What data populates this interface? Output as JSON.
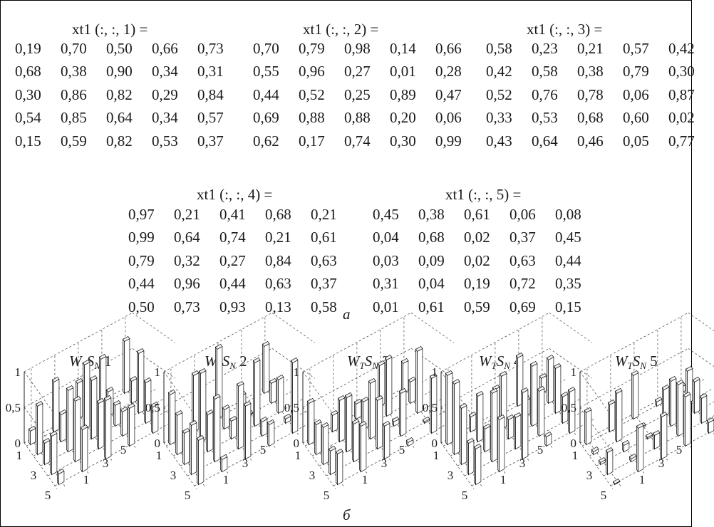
{
  "matrices": [
    {
      "title": "xt1 (:, :, 1) =",
      "rows": [
        [
          "0,19",
          "0,70",
          "0,50",
          "0,66",
          "0,73"
        ],
        [
          "0,68",
          "0,38",
          "0,90",
          "0,34",
          "0,31"
        ],
        [
          "0,30",
          "0,86",
          "0,82",
          "0,29",
          "0,84"
        ],
        [
          "0,54",
          "0,85",
          "0,64",
          "0,34",
          "0,57"
        ],
        [
          "0,15",
          "0,59",
          "0,82",
          "0,53",
          "0,37"
        ]
      ]
    },
    {
      "title": "xt1 (:, :, 2) =",
      "rows": [
        [
          "0,70",
          "0,79",
          "0,98",
          "0,14",
          "0,66"
        ],
        [
          "0,55",
          "0,96",
          "0,27",
          "0,01",
          "0,28"
        ],
        [
          "0,44",
          "0,52",
          "0,25",
          "0,89",
          "0,47"
        ],
        [
          "0,69",
          "0,88",
          "0,88",
          "0,20",
          "0,06"
        ],
        [
          "0,62",
          "0,17",
          "0,74",
          "0,30",
          "0,99"
        ]
      ]
    },
    {
      "title": "xt1 (:, :, 3) =",
      "rows": [
        [
          "0,58",
          "0,23",
          "0,21",
          "0,57",
          "0,42"
        ],
        [
          "0,42",
          "0,58",
          "0,38",
          "0,79",
          "0,30"
        ],
        [
          "0,52",
          "0,76",
          "0,78",
          "0,06",
          "0,87"
        ],
        [
          "0,33",
          "0,53",
          "0,68",
          "0,60",
          "0,02"
        ],
        [
          "0,43",
          "0,64",
          "0,46",
          "0,05",
          "0,77"
        ]
      ]
    },
    {
      "title": "xt1 (:, :, 4) =",
      "rows": [
        [
          "0,97",
          "0,21",
          "0,41",
          "0,68",
          "0,21"
        ],
        [
          "0,99",
          "0,64",
          "0,74",
          "0,21",
          "0,61"
        ],
        [
          "0,79",
          "0,32",
          "0,27",
          "0,84",
          "0,63"
        ],
        [
          "0,44",
          "0,96",
          "0,44",
          "0,63",
          "0,37"
        ],
        [
          "0,50",
          "0,73",
          "0,93",
          "0,13",
          "0,58"
        ]
      ]
    },
    {
      "title": "xt1 (:, :, 5) =",
      "rows": [
        [
          "0,45",
          "0,38",
          "0,61",
          "0,06",
          "0,08"
        ],
        [
          "0,04",
          "0,68",
          "0,02",
          "0,37",
          "0,45"
        ],
        [
          "0,03",
          "0,09",
          "0,02",
          "0,63",
          "0,44"
        ],
        [
          "0,31",
          "0,04",
          "0,19",
          "0,72",
          "0,35"
        ],
        [
          "0,01",
          "0,61",
          "0,59",
          "0,69",
          "0,15"
        ]
      ]
    }
  ],
  "labels": {
    "a": "a",
    "b": "б"
  },
  "chart_data": [
    {
      "type": "bar3d",
      "title_main": "W",
      "title_sub1": "T",
      "title_mid": "S",
      "title_sub2": "N",
      "title_num": " 1",
      "zticks": [
        "0",
        "0,5",
        "1"
      ],
      "xticks": [
        "1",
        "3",
        "5"
      ],
      "yticks": [
        "1",
        "3",
        "5"
      ],
      "zlim": [
        0,
        1
      ],
      "grid": true
    },
    {
      "type": "bar3d",
      "title_main": "W",
      "title_sub1": "T",
      "title_mid": "S",
      "title_sub2": "N",
      "title_num": " 2",
      "zticks": [
        "0",
        "0,5",
        "1"
      ],
      "xticks": [
        "1",
        "3",
        "5"
      ],
      "yticks": [
        "1",
        "3",
        "5"
      ],
      "zlim": [
        0,
        1
      ],
      "grid": true
    },
    {
      "type": "bar3d",
      "title_main": "W",
      "title_sub1": "T",
      "title_mid": "S",
      "title_sub2": "N",
      "title_num": " 3",
      "zticks": [
        "0",
        "0,5",
        "1"
      ],
      "xticks": [
        "1",
        "3",
        "5"
      ],
      "yticks": [
        "1",
        "3",
        "5"
      ],
      "zlim": [
        0,
        1
      ],
      "grid": true
    },
    {
      "type": "bar3d",
      "title_main": "W",
      "title_sub1": "T",
      "title_mid": "S",
      "title_sub2": "N",
      "title_num": " 4",
      "zticks": [
        "0",
        "0,5",
        "1"
      ],
      "xticks": [
        "1",
        "3",
        "5"
      ],
      "yticks": [
        "1",
        "3",
        "5"
      ],
      "zlim": [
        0,
        1
      ],
      "grid": true
    },
    {
      "type": "bar3d",
      "title_main": "W",
      "title_sub1": "T",
      "title_mid": "S",
      "title_sub2": "N",
      "title_num": " 5",
      "zticks": [
        "0",
        "0,5",
        "1"
      ],
      "xticks": [
        "1",
        "3",
        "5"
      ],
      "yticks": [
        "1",
        "3",
        "5"
      ],
      "zlim": [
        0,
        1
      ],
      "grid": true
    }
  ]
}
